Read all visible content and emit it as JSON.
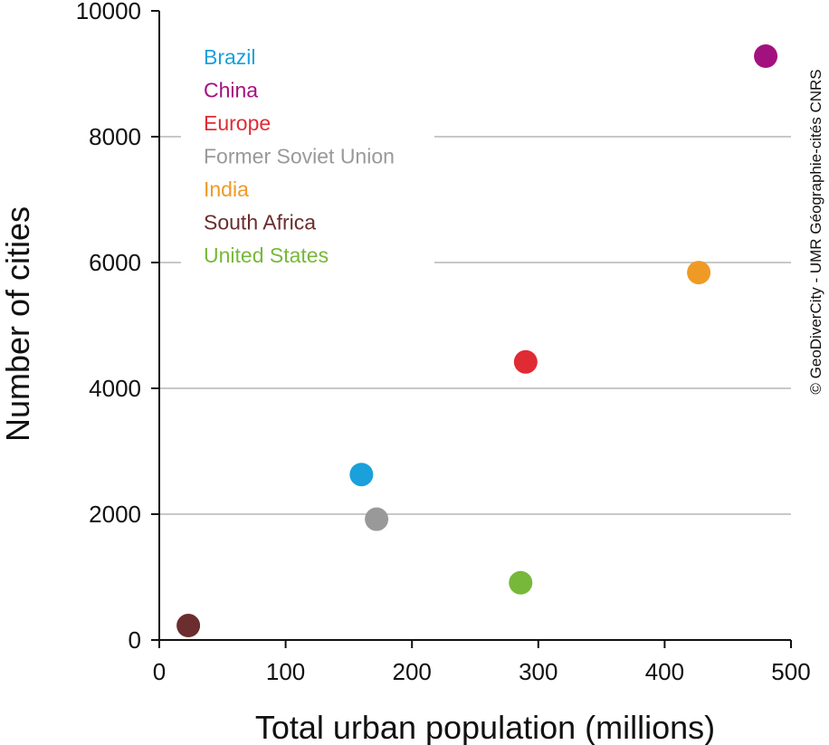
{
  "chart_data": {
    "type": "scatter",
    "xlabel": "Total urban population (millions)",
    "ylabel": "Number of cities",
    "xlim": [
      0,
      500
    ],
    "ylim": [
      0,
      10000
    ],
    "x_ticks": [
      "0",
      "100",
      "200",
      "300",
      "400",
      "500"
    ],
    "y_ticks": [
      "0",
      "2000",
      "4000",
      "6000",
      "8000",
      "10000"
    ],
    "grid": "horizontal",
    "legend_position": "top-left",
    "series": [
      {
        "name": "Brazil",
        "color": "#1aa0db",
        "x": 160,
        "y": 2630
      },
      {
        "name": "China",
        "color": "#a3117f",
        "x": 480,
        "y": 9280
      },
      {
        "name": "Europe",
        "color": "#e02b35",
        "x": 290,
        "y": 4420
      },
      {
        "name": "Former Soviet Union",
        "color": "#999999",
        "x": 172,
        "y": 1920
      },
      {
        "name": "India",
        "color": "#f09a26",
        "x": 427,
        "y": 5840
      },
      {
        "name": "South Africa",
        "color": "#6b2d2d",
        "x": 23,
        "y": 230
      },
      {
        "name": "United States",
        "color": "#77b83a",
        "x": 286,
        "y": 910
      }
    ]
  },
  "credit": "© GeoDiverCity - UMR Géographie-cités CNRS"
}
